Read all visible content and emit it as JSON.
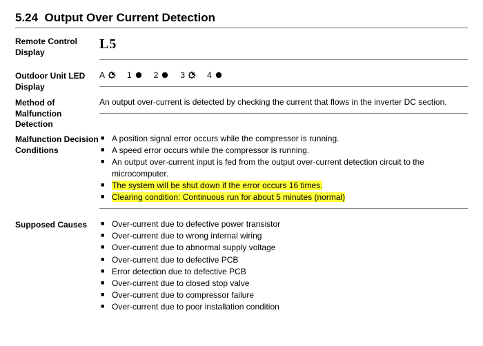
{
  "section": {
    "number": "5.24",
    "title": "Output Over Current Detection"
  },
  "remote_display": {
    "label": "Remote Control Display",
    "code": "L5"
  },
  "led_display": {
    "label": "Outdoor Unit LED Display",
    "items": [
      {
        "num": "A",
        "state": "blink"
      },
      {
        "num": "1",
        "state": "on"
      },
      {
        "num": "2",
        "state": "on"
      },
      {
        "num": "3",
        "state": "blink"
      },
      {
        "num": "4",
        "state": "on"
      }
    ]
  },
  "detection": {
    "label": "Method of Malfunction Detection",
    "text": "An output over-current is detected by checking the current that flows in the inverter DC section."
  },
  "conditions": {
    "label": "Malfunction Decision Conditions",
    "items": [
      {
        "text": "A position signal error occurs while the compressor is running.",
        "highlight": false
      },
      {
        "text": "A speed error occurs while the compressor is running.",
        "highlight": false
      },
      {
        "text": "An output over-current input is fed from the output over-current detection circuit to the microcomputer.",
        "highlight": false
      },
      {
        "text": "The system will be shut down if the error occurs 16 times.",
        "highlight": true
      },
      {
        "text": "Clearing condition: Continuous run for about 5 minutes (normal)",
        "highlight": true
      }
    ]
  },
  "causes": {
    "label": "Supposed Causes",
    "items": [
      "Over-current due to defective power transistor",
      "Over-current due to wrong internal wiring",
      "Over-current due to abnormal supply voltage",
      "Over-current due to defective PCB",
      "Error detection due to defective PCB",
      "Over-current due to closed stop valve",
      "Over-current due to compressor failure",
      "Over-current due to poor installation condition"
    ]
  },
  "colors": {
    "highlight": "#ffff3a",
    "rule": "#888888",
    "text": "#000000"
  }
}
